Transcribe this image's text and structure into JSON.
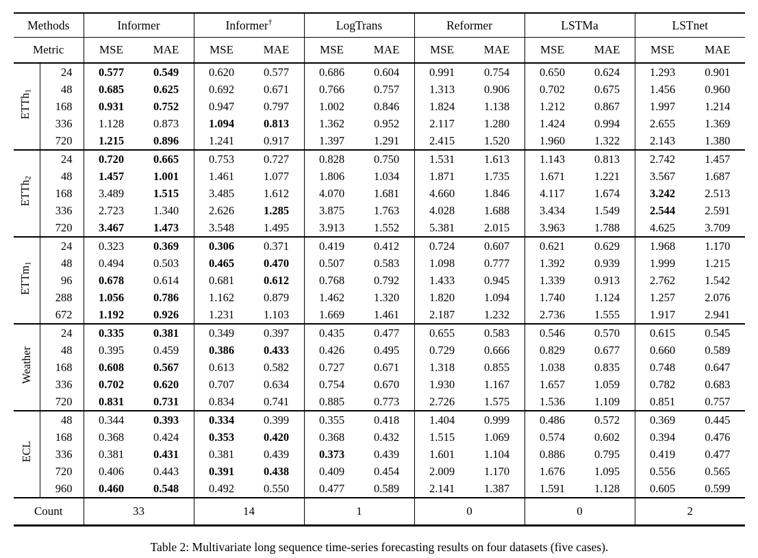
{
  "table": {
    "methods_header_label": "Methods",
    "metric_header_label": "Metric",
    "methods": [
      {
        "base": "Informer",
        "sup": ""
      },
      {
        "base": "Informer",
        "sup": "†"
      },
      {
        "base": "LogTrans",
        "sup": ""
      },
      {
        "base": "Reformer",
        "sup": ""
      },
      {
        "base": "LSTMa",
        "sup": ""
      },
      {
        "base": "LSTnet",
        "sup": ""
      }
    ],
    "metric_cols": [
      "MSE",
      "MAE"
    ],
    "groups": [
      {
        "dataset": {
          "base": "ETTh",
          "sub": "1"
        },
        "rows": [
          {
            "h": "24",
            "v": [
              "0.577",
              "0.549",
              "0.620",
              "0.577",
              "0.686",
              "0.604",
              "0.991",
              "0.754",
              "0.650",
              "0.624",
              "1.293",
              "0.901"
            ],
            "bold": [
              0,
              1
            ]
          },
          {
            "h": "48",
            "v": [
              "0.685",
              "0.625",
              "0.692",
              "0.671",
              "0.766",
              "0.757",
              "1.313",
              "0.906",
              "0.702",
              "0.675",
              "1.456",
              "0.960"
            ],
            "bold": [
              0,
              1
            ]
          },
          {
            "h": "168",
            "v": [
              "0.931",
              "0.752",
              "0.947",
              "0.797",
              "1.002",
              "0.846",
              "1.824",
              "1.138",
              "1.212",
              "0.867",
              "1.997",
              "1.214"
            ],
            "bold": [
              0,
              1
            ]
          },
          {
            "h": "336",
            "v": [
              "1.128",
              "0.873",
              "1.094",
              "0.813",
              "1.362",
              "0.952",
              "2.117",
              "1.280",
              "1.424",
              "0.994",
              "2.655",
              "1.369"
            ],
            "bold": [
              2,
              3
            ]
          },
          {
            "h": "720",
            "v": [
              "1.215",
              "0.896",
              "1.241",
              "0.917",
              "1.397",
              "1.291",
              "2.415",
              "1.520",
              "1.960",
              "1.322",
              "2.143",
              "1.380"
            ],
            "bold": [
              0,
              1
            ]
          }
        ]
      },
      {
        "dataset": {
          "base": "ETTh",
          "sub": "2"
        },
        "rows": [
          {
            "h": "24",
            "v": [
              "0.720",
              "0.665",
              "0.753",
              "0.727",
              "0.828",
              "0.750",
              "1.531",
              "1.613",
              "1.143",
              "0.813",
              "2.742",
              "1.457"
            ],
            "bold": [
              0,
              1
            ]
          },
          {
            "h": "48",
            "v": [
              "1.457",
              "1.001",
              "1.461",
              "1.077",
              "1.806",
              "1.034",
              "1.871",
              "1.735",
              "1.671",
              "1.221",
              "3.567",
              "1.687"
            ],
            "bold": [
              0,
              1
            ]
          },
          {
            "h": "168",
            "v": [
              "3.489",
              "1.515",
              "3.485",
              "1.612",
              "4.070",
              "1.681",
              "4.660",
              "1.846",
              "4.117",
              "1.674",
              "3.242",
              "2.513"
            ],
            "bold": [
              1,
              10
            ]
          },
          {
            "h": "336",
            "v": [
              "2.723",
              "1.340",
              "2.626",
              "1.285",
              "3.875",
              "1.763",
              "4.028",
              "1.688",
              "3.434",
              "1.549",
              "2.544",
              "2.591"
            ],
            "bold": [
              3,
              10
            ]
          },
          {
            "h": "720",
            "v": [
              "3.467",
              "1.473",
              "3.548",
              "1.495",
              "3.913",
              "1.552",
              "5.381",
              "2.015",
              "3.963",
              "1.788",
              "4.625",
              "3.709"
            ],
            "bold": [
              0,
              1
            ]
          }
        ]
      },
      {
        "dataset": {
          "base": "ETTm",
          "sub": "1"
        },
        "rows": [
          {
            "h": "24",
            "v": [
              "0.323",
              "0.369",
              "0.306",
              "0.371",
              "0.419",
              "0.412",
              "0.724",
              "0.607",
              "0.621",
              "0.629",
              "1.968",
              "1.170"
            ],
            "bold": [
              1,
              2
            ]
          },
          {
            "h": "48",
            "v": [
              "0.494",
              "0.503",
              "0.465",
              "0.470",
              "0.507",
              "0.583",
              "1.098",
              "0.777",
              "1.392",
              "0.939",
              "1.999",
              "1.215"
            ],
            "bold": [
              2,
              3
            ]
          },
          {
            "h": "96",
            "v": [
              "0.678",
              "0.614",
              "0.681",
              "0.612",
              "0.768",
              "0.792",
              "1.433",
              "0.945",
              "1.339",
              "0.913",
              "2.762",
              "1.542"
            ],
            "bold": [
              0,
              3
            ]
          },
          {
            "h": "288",
            "v": [
              "1.056",
              "0.786",
              "1.162",
              "0.879",
              "1.462",
              "1.320",
              "1.820",
              "1.094",
              "1.740",
              "1.124",
              "1.257",
              "2.076"
            ],
            "bold": [
              0,
              1
            ]
          },
          {
            "h": "672",
            "v": [
              "1.192",
              "0.926",
              "1.231",
              "1.103",
              "1.669",
              "1.461",
              "2.187",
              "1.232",
              "2.736",
              "1.555",
              "1.917",
              "2.941"
            ],
            "bold": [
              0,
              1
            ]
          }
        ]
      },
      {
        "dataset": {
          "base": "Weather",
          "sub": ""
        },
        "rows": [
          {
            "h": "24",
            "v": [
              "0.335",
              "0.381",
              "0.349",
              "0.397",
              "0.435",
              "0.477",
              "0.655",
              "0.583",
              "0.546",
              "0.570",
              "0.615",
              "0.545"
            ],
            "bold": [
              0,
              1
            ]
          },
          {
            "h": "48",
            "v": [
              "0.395",
              "0.459",
              "0.386",
              "0.433",
              "0.426",
              "0.495",
              "0.729",
              "0.666",
              "0.829",
              "0.677",
              "0.660",
              "0.589"
            ],
            "bold": [
              2,
              3
            ]
          },
          {
            "h": "168",
            "v": [
              "0.608",
              "0.567",
              "0.613",
              "0.582",
              "0.727",
              "0.671",
              "1.318",
              "0.855",
              "1.038",
              "0.835",
              "0.748",
              "0.647"
            ],
            "bold": [
              0,
              1
            ]
          },
          {
            "h": "336",
            "v": [
              "0.702",
              "0.620",
              "0.707",
              "0.634",
              "0.754",
              "0.670",
              "1.930",
              "1.167",
              "1.657",
              "1.059",
              "0.782",
              "0.683"
            ],
            "bold": [
              0,
              1
            ]
          },
          {
            "h": "720",
            "v": [
              "0.831",
              "0.731",
              "0.834",
              "0.741",
              "0.885",
              "0.773",
              "2.726",
              "1.575",
              "1.536",
              "1.109",
              "0.851",
              "0.757"
            ],
            "bold": [
              0,
              1
            ]
          }
        ]
      },
      {
        "dataset": {
          "base": "ECL",
          "sub": ""
        },
        "rows": [
          {
            "h": "48",
            "v": [
              "0.344",
              "0.393",
              "0.334",
              "0.399",
              "0.355",
              "0.418",
              "1.404",
              "0.999",
              "0.486",
              "0.572",
              "0.369",
              "0.445"
            ],
            "bold": [
              1,
              2
            ]
          },
          {
            "h": "168",
            "v": [
              "0.368",
              "0.424",
              "0.353",
              "0.420",
              "0.368",
              "0.432",
              "1.515",
              "1.069",
              "0.574",
              "0.602",
              "0.394",
              "0.476"
            ],
            "bold": [
              2,
              3
            ]
          },
          {
            "h": "336",
            "v": [
              "0.381",
              "0.431",
              "0.381",
              "0.439",
              "0.373",
              "0.439",
              "1.601",
              "1.104",
              "0.886",
              "0.795",
              "0.419",
              "0.477"
            ],
            "bold": [
              1,
              4
            ]
          },
          {
            "h": "720",
            "v": [
              "0.406",
              "0.443",
              "0.391",
              "0.438",
              "0.409",
              "0.454",
              "2.009",
              "1.170",
              "1.676",
              "1.095",
              "0.556",
              "0.565"
            ],
            "bold": [
              2,
              3
            ]
          },
          {
            "h": "960",
            "v": [
              "0.460",
              "0.548",
              "0.492",
              "0.550",
              "0.477",
              "0.589",
              "2.141",
              "1.387",
              "1.591",
              "1.128",
              "0.605",
              "0.599"
            ],
            "bold": [
              0,
              1
            ]
          }
        ]
      }
    ],
    "count": {
      "label": "Count",
      "values": [
        "33",
        "14",
        "1",
        "0",
        "0",
        "2"
      ]
    }
  },
  "caption": "Table 2: Multivariate long sequence time-series forecasting results on four datasets (five cases)."
}
